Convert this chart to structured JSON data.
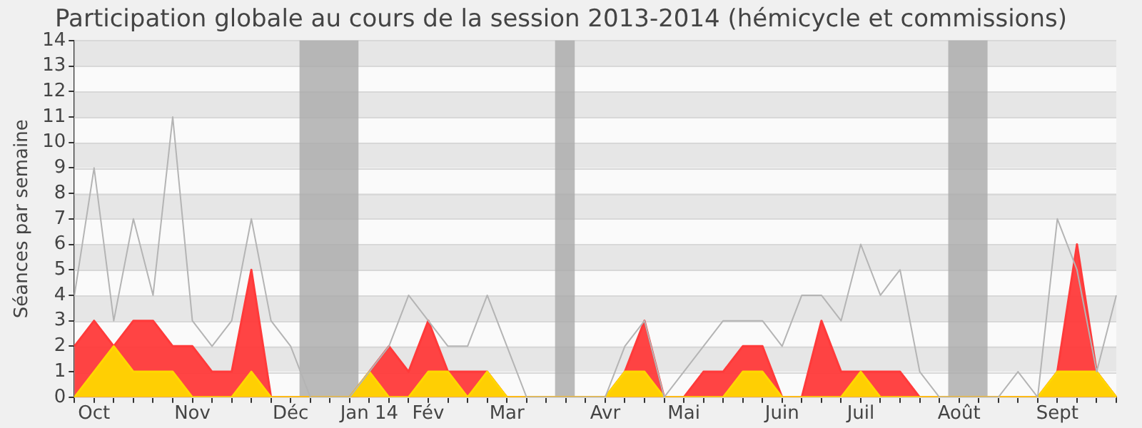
{
  "chart_data": {
    "type": "area",
    "title": "Participation globale au cours de la session 2013-2014 (hémicycle et commissions)",
    "ylabel": "Séances par semaine",
    "categories": [
      null,
      "Oct",
      null,
      null,
      null,
      null,
      "Nov",
      null,
      null,
      null,
      null,
      "Déc",
      null,
      null,
      null,
      "Jan 14",
      null,
      null,
      "Fév",
      null,
      null,
      null,
      "Mar",
      null,
      null,
      null,
      null,
      "Avr",
      null,
      null,
      null,
      "Mai",
      null,
      null,
      null,
      null,
      "Juin",
      null,
      null,
      null,
      "Juil",
      null,
      null,
      null,
      null,
      "Août",
      null,
      null,
      null,
      null,
      "Sept",
      null,
      null,
      null
    ],
    "series": [
      {
        "type": "line",
        "color": "#b4b4b4",
        "values": [
          4,
          9,
          3,
          7,
          4,
          11,
          3,
          2,
          3,
          7,
          3,
          2,
          0,
          0,
          0,
          1,
          2,
          4,
          3,
          2,
          2,
          4,
          2,
          0,
          0,
          0,
          0,
          0,
          2,
          3,
          0,
          1,
          2,
          3,
          3,
          3,
          2,
          4,
          4,
          3,
          6,
          4,
          5,
          1,
          0,
          0,
          0,
          0,
          1,
          0,
          7,
          5,
          1,
          4
        ]
      },
      {
        "type": "area",
        "color": "#ff3a3a",
        "values": [
          2,
          3,
          2,
          3,
          3,
          2,
          2,
          1,
          1,
          5,
          0,
          0,
          0,
          0,
          0,
          1,
          2,
          1,
          3,
          1,
          1,
          1,
          0,
          0,
          0,
          0,
          0,
          0,
          1,
          3,
          0,
          0,
          1,
          1,
          2,
          2,
          0,
          0,
          3,
          1,
          1,
          1,
          1,
          0,
          0,
          0,
          0,
          0,
          0,
          0,
          1,
          6,
          1,
          0
        ]
      },
      {
        "type": "area",
        "color": "#ffd700",
        "values": [
          0,
          1,
          2,
          1,
          1,
          1,
          0,
          0,
          0,
          1,
          0,
          0,
          0,
          0,
          0,
          1,
          0,
          0,
          1,
          1,
          0,
          1,
          0,
          0,
          0,
          0,
          0,
          0,
          1,
          1,
          0,
          0,
          0,
          0,
          1,
          1,
          0,
          0,
          0,
          0,
          1,
          0,
          0,
          0,
          0,
          0,
          0,
          0,
          0,
          0,
          1,
          1,
          1,
          0
        ]
      }
    ],
    "ylim": [
      0,
      14
    ],
    "yticks": [
      0,
      1,
      2,
      3,
      4,
      5,
      6,
      7,
      8,
      9,
      10,
      11,
      12,
      13,
      14
    ],
    "grid": "y",
    "legend": false
  }
}
